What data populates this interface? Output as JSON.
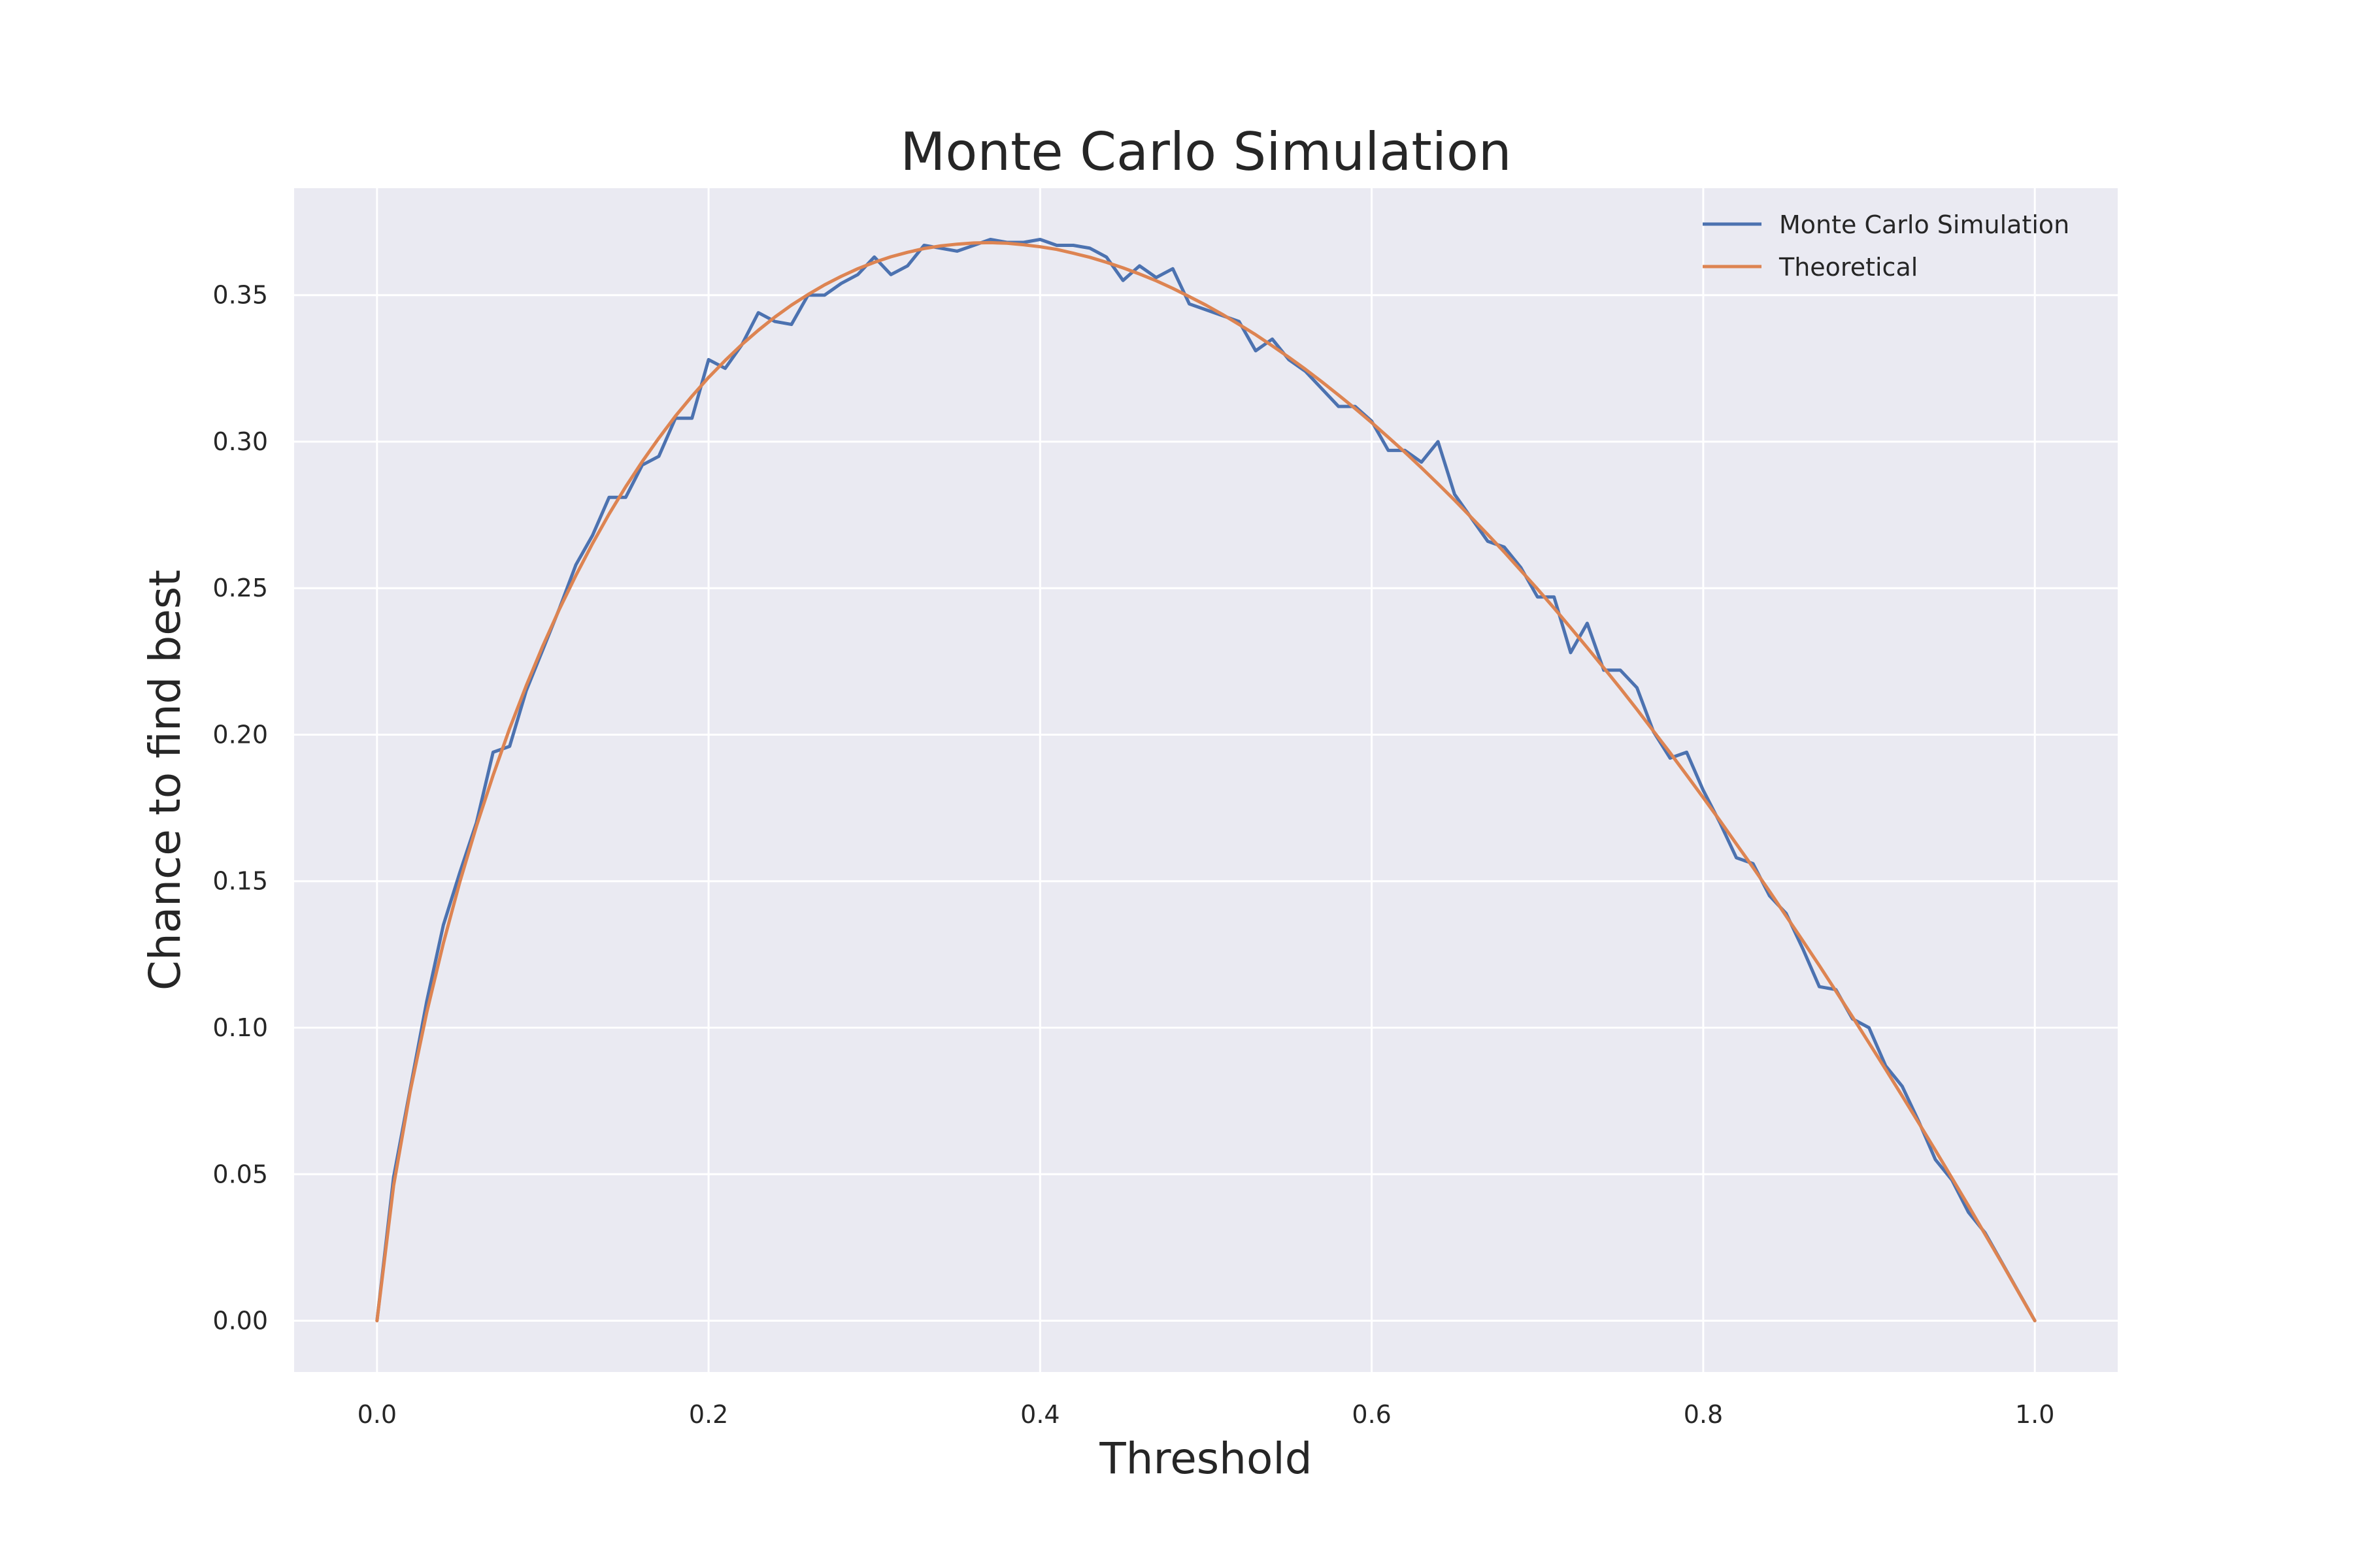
{
  "chart_data": {
    "type": "line",
    "title": "Monte Carlo Simulation",
    "xlabel": "Threshold",
    "ylabel": "Chance to find best",
    "xlim": [
      -0.05,
      1.05
    ],
    "ylim": [
      -0.0175,
      0.3865
    ],
    "xticks": [
      "0.0",
      "0.2",
      "0.4",
      "0.6",
      "0.8",
      "1.0"
    ],
    "yticks": [
      "0.00",
      "0.05",
      "0.10",
      "0.15",
      "0.20",
      "0.25",
      "0.30",
      "0.35"
    ],
    "grid": true,
    "legend_position": "top-right",
    "series": [
      {
        "name": "Monte Carlo Simulation",
        "color": "#4c72b0",
        "x": [
          0.0,
          0.01,
          0.02,
          0.03,
          0.04,
          0.05,
          0.06,
          0.07,
          0.08,
          0.09,
          0.1,
          0.11,
          0.12,
          0.13,
          0.14,
          0.15,
          0.16,
          0.17,
          0.18,
          0.19,
          0.2,
          0.21,
          0.22,
          0.23,
          0.24,
          0.25,
          0.26,
          0.27,
          0.28,
          0.29,
          0.3,
          0.31,
          0.32,
          0.33,
          0.34,
          0.35,
          0.36,
          0.37,
          0.38,
          0.39,
          0.4,
          0.41,
          0.42,
          0.43,
          0.44,
          0.45,
          0.46,
          0.47,
          0.48,
          0.49,
          0.5,
          0.51,
          0.52,
          0.53,
          0.54,
          0.55,
          0.56,
          0.57,
          0.58,
          0.59,
          0.6,
          0.61,
          0.62,
          0.63,
          0.64,
          0.65,
          0.66,
          0.67,
          0.68,
          0.69,
          0.7,
          0.71,
          0.72,
          0.73,
          0.74,
          0.75,
          0.76,
          0.77,
          0.78,
          0.79,
          0.8,
          0.81,
          0.82,
          0.83,
          0.84,
          0.85,
          0.86,
          0.87,
          0.88,
          0.89,
          0.9,
          0.91,
          0.92,
          0.93,
          0.94,
          0.95,
          0.96,
          0.97,
          0.98,
          0.99,
          1.0
        ],
        "y": [
          0.0,
          0.049,
          0.079,
          0.109,
          0.135,
          0.153,
          0.17,
          0.194,
          0.196,
          0.215,
          0.229,
          0.243,
          0.258,
          0.268,
          0.281,
          0.281,
          0.292,
          0.295,
          0.308,
          0.308,
          0.328,
          0.325,
          0.333,
          0.344,
          0.341,
          0.34,
          0.35,
          0.35,
          0.354,
          0.357,
          0.363,
          0.357,
          0.36,
          0.367,
          0.366,
          0.365,
          0.367,
          0.369,
          0.368,
          0.368,
          0.369,
          0.367,
          0.367,
          0.366,
          0.363,
          0.355,
          0.36,
          0.356,
          0.359,
          0.347,
          0.345,
          0.343,
          0.341,
          0.331,
          0.335,
          0.328,
          0.324,
          0.318,
          0.312,
          0.312,
          0.307,
          0.297,
          0.297,
          0.293,
          0.3,
          0.282,
          0.274,
          0.266,
          0.264,
          0.257,
          0.247,
          0.247,
          0.228,
          0.238,
          0.222,
          0.222,
          0.216,
          0.201,
          0.192,
          0.194,
          0.181,
          0.17,
          0.158,
          0.156,
          0.145,
          0.139,
          0.127,
          0.114,
          0.113,
          0.103,
          0.1,
          0.087,
          0.08,
          0.068,
          0.055,
          0.048,
          0.037,
          0.03,
          0.02,
          0.01,
          0.0
        ]
      },
      {
        "name": "Theoretical",
        "color": "#dd8452",
        "x": [
          0.0,
          0.01,
          0.02,
          0.03,
          0.04,
          0.05,
          0.06,
          0.07,
          0.08,
          0.09,
          0.1,
          0.11,
          0.12,
          0.13,
          0.14,
          0.15,
          0.16,
          0.17,
          0.18,
          0.19,
          0.2,
          0.21,
          0.22,
          0.23,
          0.24,
          0.25,
          0.26,
          0.27,
          0.28,
          0.29,
          0.3,
          0.31,
          0.32,
          0.33,
          0.34,
          0.35,
          0.36,
          0.37,
          0.38,
          0.39,
          0.4,
          0.41,
          0.42,
          0.43,
          0.44,
          0.45,
          0.46,
          0.47,
          0.48,
          0.49,
          0.5,
          0.51,
          0.52,
          0.53,
          0.54,
          0.55,
          0.56,
          0.57,
          0.58,
          0.59,
          0.6,
          0.61,
          0.62,
          0.63,
          0.64,
          0.65,
          0.66,
          0.67,
          0.68,
          0.69,
          0.7,
          0.71,
          0.72,
          0.73,
          0.74,
          0.75,
          0.76,
          0.77,
          0.78,
          0.79,
          0.8,
          0.81,
          0.82,
          0.83,
          0.84,
          0.85,
          0.86,
          0.87,
          0.88,
          0.89,
          0.9,
          0.91,
          0.92,
          0.93,
          0.94,
          0.95,
          0.96,
          0.97,
          0.98,
          0.99,
          1.0
        ],
        "y": [
          0.0,
          0.0461,
          0.0782,
          0.1052,
          0.1288,
          0.1498,
          0.1688,
          0.1861,
          0.2021,
          0.2167,
          0.2303,
          0.2428,
          0.2544,
          0.2652,
          0.2753,
          0.2846,
          0.2932,
          0.3012,
          0.3087,
          0.3155,
          0.3219,
          0.3277,
          0.3331,
          0.338,
          0.3425,
          0.3466,
          0.3502,
          0.3535,
          0.3564,
          0.359,
          0.3612,
          0.3631,
          0.3646,
          0.3659,
          0.3668,
          0.3674,
          0.3678,
          0.3679,
          0.3677,
          0.3672,
          0.3665,
          0.3656,
          0.3643,
          0.3629,
          0.3612,
          0.3593,
          0.3572,
          0.3549,
          0.3523,
          0.3495,
          0.3466,
          0.3434,
          0.34,
          0.3365,
          0.3327,
          0.3288,
          0.3247,
          0.3204,
          0.3159,
          0.3113,
          0.3065,
          0.3015,
          0.2964,
          0.2911,
          0.2856,
          0.28,
          0.2742,
          0.2683,
          0.2623,
          0.256,
          0.2497,
          0.2432,
          0.2365,
          0.2297,
          0.2228,
          0.2158,
          0.2086,
          0.2012,
          0.1938,
          0.1862,
          0.1785,
          0.1707,
          0.1627,
          0.1547,
          0.1465,
          0.1381,
          0.1297,
          0.1212,
          0.1125,
          0.1037,
          0.0948,
          0.0858,
          0.0767,
          0.0675,
          0.0582,
          0.0487,
          0.0392,
          0.0295,
          0.0198,
          0.0099,
          0.0
        ]
      }
    ]
  }
}
